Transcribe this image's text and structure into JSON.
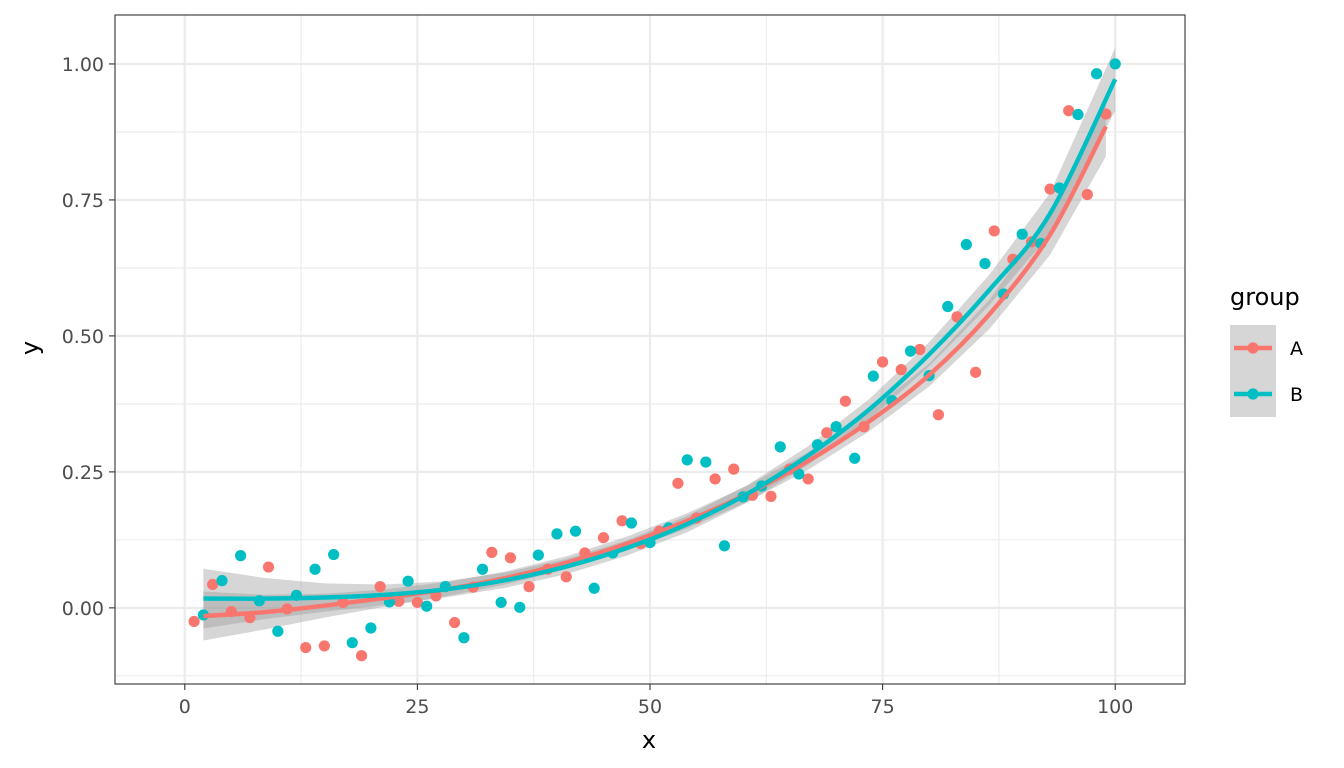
{
  "chart_data": {
    "type": "scatter",
    "title": "",
    "xlabel": "x",
    "ylabel": "y",
    "xlim": [
      -7.5,
      107.5
    ],
    "ylim": [
      -0.14,
      1.09
    ],
    "x_ticks": [
      0,
      25,
      50,
      75,
      100
    ],
    "x_tick_labels": [
      "0",
      "25",
      "50",
      "75",
      "100"
    ],
    "y_ticks": [
      0,
      0.25,
      0.5,
      0.75,
      1.0
    ],
    "y_tick_labels": [
      "0.00",
      "0.25",
      "0.50",
      "0.75",
      "1.00"
    ],
    "grid": true,
    "legend": {
      "title": "group",
      "position": "right"
    },
    "series": [
      {
        "name": "A",
        "color": "#F8766D",
        "points": [
          [
            1,
            -0.025
          ],
          [
            3,
            0.043
          ],
          [
            5,
            -0.007
          ],
          [
            7,
            -0.018
          ],
          [
            9,
            0.075
          ],
          [
            11,
            -0.002
          ],
          [
            13,
            -0.073
          ],
          [
            15,
            -0.07
          ],
          [
            17,
            0.01
          ],
          [
            19,
            -0.088
          ],
          [
            21,
            0.039
          ],
          [
            23,
            0.012
          ],
          [
            25,
            0.01
          ],
          [
            27,
            0.022
          ],
          [
            29,
            -0.027
          ],
          [
            31,
            0.038
          ],
          [
            33,
            0.102
          ],
          [
            35,
            0.092
          ],
          [
            37,
            0.039
          ],
          [
            39,
            0.071
          ],
          [
            41,
            0.057
          ],
          [
            43,
            0.101
          ],
          [
            45,
            0.129
          ],
          [
            47,
            0.16
          ],
          [
            49,
            0.118
          ],
          [
            51,
            0.141
          ],
          [
            53,
            0.229
          ],
          [
            55,
            0.165
          ],
          [
            57,
            0.237
          ],
          [
            59,
            0.255
          ],
          [
            61,
            0.207
          ],
          [
            63,
            0.205
          ],
          [
            65,
            0.255
          ],
          [
            67,
            0.237
          ],
          [
            69,
            0.322
          ],
          [
            71,
            0.38
          ],
          [
            73,
            0.333
          ],
          [
            75,
            0.452
          ],
          [
            77,
            0.438
          ],
          [
            79,
            0.475
          ],
          [
            81,
            0.355
          ],
          [
            83,
            0.535
          ],
          [
            85,
            0.433
          ],
          [
            87,
            0.693
          ],
          [
            89,
            0.641
          ],
          [
            91,
            0.673
          ],
          [
            93,
            0.77
          ],
          [
            95,
            0.914
          ],
          [
            97,
            0.76
          ],
          [
            99,
            0.908
          ]
        ],
        "fit_x": [
          2,
          8.5,
          15,
          21.5,
          28,
          34.5,
          41,
          47.5,
          54,
          60.5,
          67,
          73.5,
          80,
          86.5,
          93,
          99
        ],
        "fit_y": [
          -0.015,
          -0.008,
          0.004,
          0.018,
          0.034,
          0.055,
          0.083,
          0.118,
          0.16,
          0.21,
          0.27,
          0.342,
          0.428,
          0.54,
          0.686,
          0.885
        ],
        "ci_halfwidth": [
          0.045,
          0.032,
          0.022,
          0.016,
          0.013,
          0.012,
          0.012,
          0.013,
          0.014,
          0.015,
          0.016,
          0.018,
          0.021,
          0.027,
          0.037,
          0.055
        ]
      },
      {
        "name": "B",
        "color": "#00BFC4",
        "points": [
          [
            2,
            -0.013
          ],
          [
            4,
            0.05
          ],
          [
            6,
            0.096
          ],
          [
            8,
            0.013
          ],
          [
            10,
            -0.043
          ],
          [
            12,
            0.023
          ],
          [
            14,
            0.071
          ],
          [
            16,
            0.098
          ],
          [
            18,
            -0.064
          ],
          [
            20,
            -0.037
          ],
          [
            22,
            0.011
          ],
          [
            24,
            0.049
          ],
          [
            26,
            0.003
          ],
          [
            28,
            0.039
          ],
          [
            30,
            -0.055
          ],
          [
            32,
            0.071
          ],
          [
            34,
            0.01
          ],
          [
            36,
            0.001
          ],
          [
            38,
            0.097
          ],
          [
            40,
            0.136
          ],
          [
            42,
            0.141
          ],
          [
            44,
            0.036
          ],
          [
            46,
            0.101
          ],
          [
            48,
            0.156
          ],
          [
            50,
            0.12
          ],
          [
            52,
            0.147
          ],
          [
            54,
            0.272
          ],
          [
            56,
            0.268
          ],
          [
            58,
            0.114
          ],
          [
            60,
            0.204
          ],
          [
            62,
            0.224
          ],
          [
            64,
            0.296
          ],
          [
            66,
            0.246
          ],
          [
            68,
            0.3
          ],
          [
            70,
            0.333
          ],
          [
            72,
            0.275
          ],
          [
            74,
            0.426
          ],
          [
            76,
            0.381
          ],
          [
            78,
            0.472
          ],
          [
            80,
            0.427
          ],
          [
            82,
            0.554
          ],
          [
            84,
            0.668
          ],
          [
            86,
            0.633
          ],
          [
            88,
            0.577
          ],
          [
            90,
            0.687
          ],
          [
            92,
            0.67
          ],
          [
            94,
            0.772
          ],
          [
            96,
            0.907
          ],
          [
            98,
            0.982
          ],
          [
            100,
            1.0
          ]
        ],
        "fit_x": [
          2,
          8.5,
          15,
          21.5,
          28,
          34.5,
          41,
          47.5,
          54,
          60.5,
          67,
          73.5,
          80,
          86.5,
          93,
          100
        ],
        "fit_y": [
          0.017,
          0.017,
          0.019,
          0.024,
          0.034,
          0.051,
          0.076,
          0.11,
          0.154,
          0.21,
          0.28,
          0.364,
          0.466,
          0.585,
          0.725,
          0.972
        ],
        "ci_halfwidth": [
          0.055,
          0.038,
          0.026,
          0.019,
          0.015,
          0.014,
          0.014,
          0.014,
          0.015,
          0.016,
          0.017,
          0.019,
          0.022,
          0.028,
          0.038,
          0.058
        ]
      }
    ]
  }
}
